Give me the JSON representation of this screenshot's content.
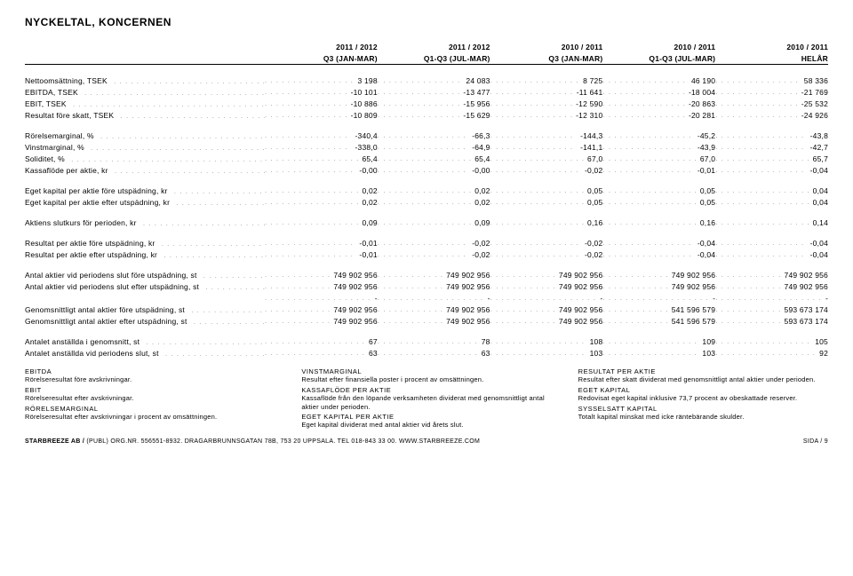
{
  "title": "NYCKELTAL, KONCERNEN",
  "periods_row1": [
    "2011 / 2012",
    "2011 / 2012",
    "2010 / 2011",
    "2010 / 2011",
    "2010 / 2011"
  ],
  "periods_row2": [
    "Q3 (JAN-MAR)",
    "Q1-Q3 (JUL-MAR)",
    "Q3 (JAN-MAR)",
    "Q1-Q3 (JUL-MAR)",
    "HELÅR"
  ],
  "blocks": [
    [
      {
        "label": "Nettoomsättning, TSEK",
        "vals": [
          "3 198",
          "24 083",
          "8 725",
          "46 190",
          "58 336"
        ]
      },
      {
        "label": "EBITDA, TSEK",
        "vals": [
          "-10 101",
          "-13 477",
          "-11 641",
          "-18 004",
          "-21 769"
        ]
      },
      {
        "label": "EBIT, TSEK",
        "vals": [
          "-10 886",
          "-15 956",
          "-12 590",
          "-20 863",
          "-25 532"
        ]
      },
      {
        "label": "Resultat före skatt, TSEK",
        "vals": [
          "-10 809",
          "-15 629",
          "-12 310",
          "-20 281",
          "-24 926"
        ]
      }
    ],
    [
      {
        "label": "Rörelsemarginal, %",
        "vals": [
          "-340,4",
          "-66,3",
          "-144,3",
          "-45,2",
          "-43,8"
        ]
      },
      {
        "label": "Vinstmarginal, %",
        "vals": [
          "-338,0",
          "-64,9",
          "-141,1",
          "-43,9",
          "-42,7"
        ]
      },
      {
        "label": "Soliditet, %",
        "vals": [
          "65,4",
          "65,4",
          "67,0",
          "67,0",
          "65,7"
        ]
      },
      {
        "label": "Kassaflöde per aktie, kr",
        "vals": [
          "-0,00",
          "-0,00",
          "-0,02",
          "-0,01",
          "-0,04"
        ]
      }
    ],
    [
      {
        "label": "Eget kapital per aktie före utspädning, kr",
        "vals": [
          "0,02",
          "0,02",
          "0,05",
          "0,05",
          "0,04"
        ]
      },
      {
        "label": "Eget kapital per aktie efter utspädning, kr",
        "vals": [
          "0,02",
          "0,02",
          "0,05",
          "0,05",
          "0,04"
        ]
      }
    ],
    [
      {
        "label": "Aktiens slutkurs för perioden, kr",
        "vals": [
          "0,09",
          "0,09",
          "0,16",
          "0,16",
          "0,14"
        ]
      }
    ],
    [
      {
        "label": "Resultat per aktie före utspädning, kr",
        "vals": [
          "-0,01",
          "-0,02",
          "-0,02",
          "-0,04",
          "-0,04"
        ]
      },
      {
        "label": "Resultat per aktie efter utspädning, kr",
        "vals": [
          "-0,01",
          "-0,02",
          "-0,02",
          "-0,04",
          "-0,04"
        ]
      }
    ],
    [
      {
        "label": "Antal aktier vid periodens slut före utspädning, st",
        "vals": [
          "749 902 956",
          "749 902 956",
          "749 902 956",
          "749 902 956",
          "749 902 956"
        ]
      },
      {
        "label": "Antal aktier vid periodens slut efter utspädning, st",
        "vals": [
          "749 902 956",
          "749 902 956",
          "749 902 956",
          "749 902 956",
          "749 902 956"
        ]
      },
      {
        "label": "",
        "vals": [
          "-",
          "-",
          "-",
          "-",
          "-"
        ]
      },
      {
        "label": "Genomsnittligt antal aktier före utspädning, st",
        "vals": [
          "749 902 956",
          "749 902 956",
          "749 902 956",
          "541 596 579",
          "593 673 174"
        ]
      },
      {
        "label": "Genomsnittligt antal aktier efter utspädning, st",
        "vals": [
          "749 902 956",
          "749 902 956",
          "749 902 956",
          "541 596 579",
          "593 673 174"
        ]
      }
    ],
    [
      {
        "label": "Antalet anställda i genomsnitt, st",
        "vals": [
          "67",
          "78",
          "108",
          "109",
          "105"
        ]
      },
      {
        "label": "Antalet anställda vid periodens slut, st",
        "vals": [
          "63",
          "63",
          "103",
          "103",
          "92"
        ]
      }
    ]
  ],
  "definitions": [
    [
      {
        "term": "EBITDA",
        "def": "Rörelseresultat före avskrivningar."
      },
      {
        "term": "EBIT",
        "def": "Rörelseresultat efter avskrivningar."
      },
      {
        "term": "RÖRELSEMARGINAL",
        "def": "Rörelseresultat efter avskrivningar i procent av omsättningen."
      }
    ],
    [
      {
        "term": "VINSTMARGINAL",
        "def": "Resultat efter finansiella poster i procent av omsättningen."
      },
      {
        "term": "KASSAFLÖDE PER AKTIE",
        "def": "Kassaflöde från den löpande verksamheten dividerat med genomsnittligt antal aktier under perioden."
      },
      {
        "term": "EGET KAPITAL PER AKTIE",
        "def": "Eget kapital dividerat med antal aktier vid årets slut."
      }
    ],
    [
      {
        "term": "RESULTAT PER AKTIE",
        "def": "Resultat efter skatt dividerat med genomsnittligt antal aktier under perioden."
      },
      {
        "term": "EGET KAPITAL",
        "def": "Redovisat eget kapital inklusive 73,7 procent av obeskattade reserver."
      },
      {
        "term": "SYSSELSATT KAPITAL",
        "def": "Totalt kapital minskat med icke räntebärande skulder."
      }
    ]
  ],
  "footer": {
    "left_bold": "STARBREEZE AB /",
    "left_rest": " (PUBL) ORG.NR. 556551-8932. DRAGARBRUNNSGATAN 78B, 753 20 UPPSALA. TEL 018-843 33 00. WWW.STARBREEZE.COM",
    "right": "SIDA / 9"
  }
}
